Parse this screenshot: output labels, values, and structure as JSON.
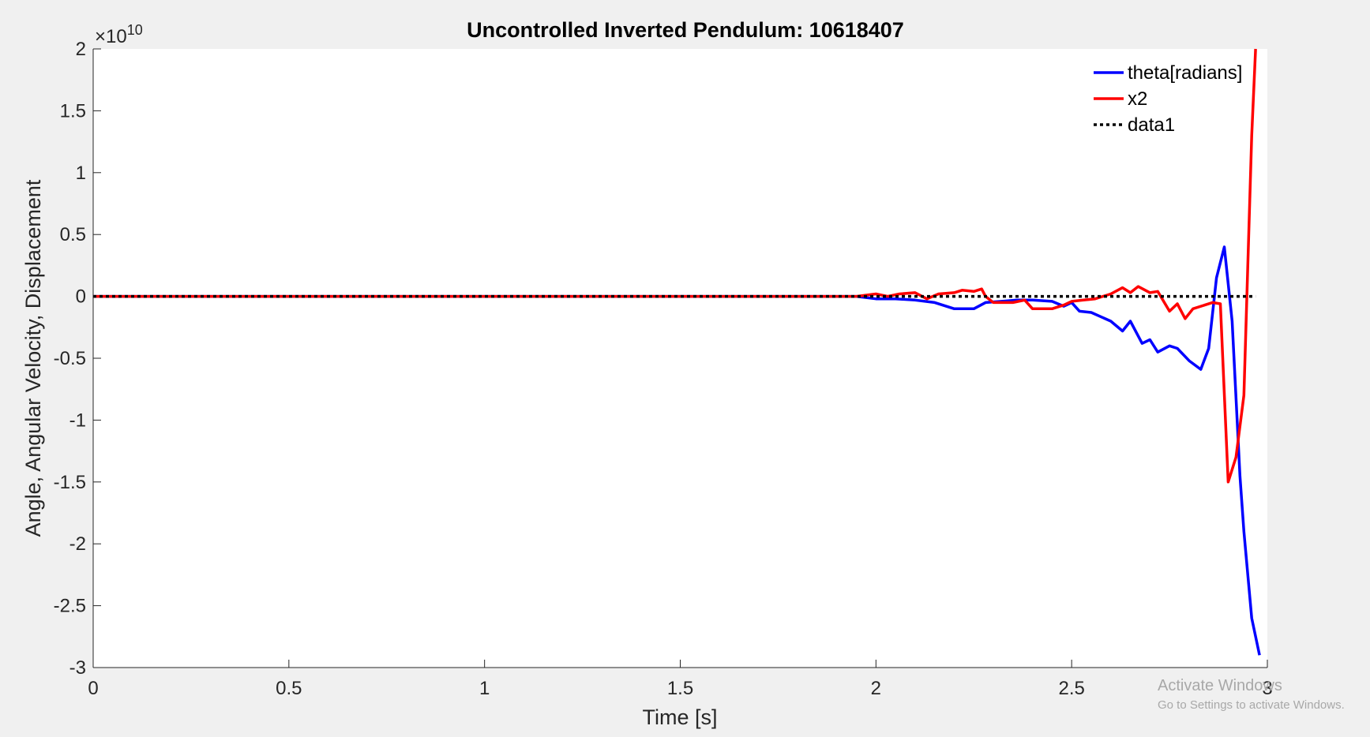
{
  "chart_data": {
    "type": "line",
    "title": "Uncontrolled Inverted Pendulum: 10618407",
    "xlabel": "Time [s]",
    "ylabel": "Angle, Angular Velocity, Displacement",
    "exponent_label": "×10",
    "exponent_power": "10",
    "xlim": [
      0,
      3
    ],
    "ylim": [
      -3,
      2
    ],
    "y_unit_multiplier": 10000000000,
    "xticks": [
      0,
      0.5,
      1,
      1.5,
      2,
      2.5,
      3
    ],
    "xtick_labels": [
      "0",
      "0.5",
      "1",
      "1.5",
      "2",
      "2.5",
      "3"
    ],
    "yticks": [
      2,
      1.5,
      1,
      0.5,
      0,
      -0.5,
      -1,
      -1.5,
      -2,
      -2.5,
      -3
    ],
    "ytick_labels": [
      "2",
      "1.5",
      "1",
      "0.5",
      "0",
      "-0.5",
      "-1",
      "-1.5",
      "-2",
      "-2.5",
      "-3"
    ],
    "grid": false,
    "legend_position": "top-right",
    "series": [
      {
        "name": "theta[radians]",
        "color": "#0000ff",
        "style": "solid",
        "x": [
          0,
          1.95,
          2.0,
          2.05,
          2.1,
          2.15,
          2.2,
          2.25,
          2.28,
          2.32,
          2.36,
          2.4,
          2.45,
          2.48,
          2.5,
          2.52,
          2.55,
          2.6,
          2.63,
          2.65,
          2.68,
          2.7,
          2.72,
          2.75,
          2.77,
          2.8,
          2.83,
          2.85,
          2.87,
          2.89,
          2.91,
          2.93,
          2.94,
          2.96,
          2.98
        ],
        "values": [
          0,
          0,
          -0.02,
          -0.02,
          -0.03,
          -0.05,
          -0.1,
          -0.1,
          -0.05,
          -0.04,
          -0.03,
          -0.03,
          -0.04,
          -0.08,
          -0.05,
          -0.12,
          -0.13,
          -0.2,
          -0.28,
          -0.2,
          -0.38,
          -0.35,
          -0.45,
          -0.4,
          -0.42,
          -0.52,
          -0.59,
          -0.42,
          0.15,
          0.4,
          -0.2,
          -1.45,
          -1.9,
          -2.6,
          -2.9
        ]
      },
      {
        "name": "x2",
        "color": "#ff0000",
        "style": "solid",
        "x": [
          0,
          1.95,
          2.0,
          2.03,
          2.06,
          2.1,
          2.13,
          2.16,
          2.2,
          2.22,
          2.25,
          2.27,
          2.28,
          2.3,
          2.35,
          2.38,
          2.4,
          2.43,
          2.45,
          2.48,
          2.5,
          2.53,
          2.56,
          2.6,
          2.63,
          2.65,
          2.67,
          2.7,
          2.72,
          2.75,
          2.77,
          2.79,
          2.81,
          2.84,
          2.86,
          2.88,
          2.9,
          2.92,
          2.94,
          2.96,
          2.97
        ],
        "values": [
          0,
          0,
          0.02,
          0.0,
          0.02,
          0.03,
          -0.02,
          0.02,
          0.03,
          0.05,
          0.04,
          0.06,
          0.0,
          -0.05,
          -0.05,
          -0.03,
          -0.1,
          -0.1,
          -0.1,
          -0.07,
          -0.04,
          -0.03,
          -0.02,
          0.02,
          0.07,
          0.03,
          0.08,
          0.03,
          0.04,
          -0.12,
          -0.06,
          -0.18,
          -0.1,
          -0.07,
          -0.05,
          -0.06,
          -1.5,
          -1.3,
          -0.8,
          1.3,
          2.0
        ]
      },
      {
        "name": "data1",
        "color": "#000000",
        "style": "dotted",
        "x": [
          0,
          2.97
        ],
        "values": [
          0,
          0
        ]
      }
    ]
  },
  "watermark": {
    "title": "Activate Windows",
    "subtitle": "Go to Settings to activate Windows."
  }
}
